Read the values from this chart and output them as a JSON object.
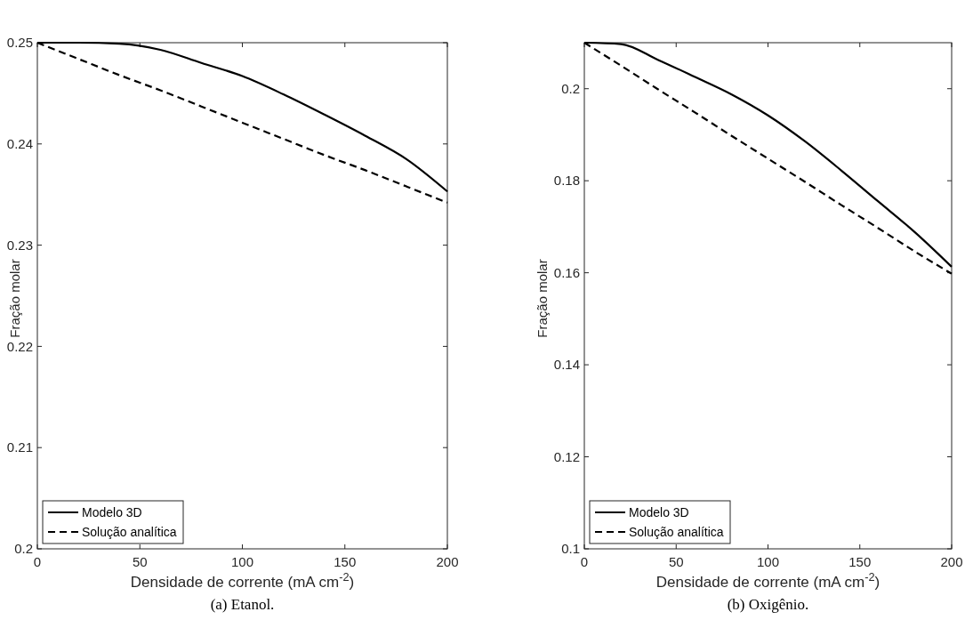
{
  "chart_data": [
    {
      "type": "line",
      "xlabel": "Densidade de corrente (mA cm$^{-2}$)",
      "ylabel": "Fração molar",
      "annotations": [
        "(a) Etanol."
      ],
      "x": [
        0,
        20,
        40,
        60,
        80,
        100,
        120,
        140,
        160,
        180,
        200
      ],
      "xlim": [
        0,
        200
      ],
      "xticks": [
        0,
        50,
        100,
        150,
        200
      ],
      "ylim": [
        0.2,
        0.25
      ],
      "yticks": [
        0.2,
        0.21,
        0.22,
        0.23,
        0.24,
        0.25
      ],
      "legend": "bottom left",
      "grid": false,
      "series": [
        {
          "name": "Modelo 3D",
          "color": "#000000",
          "line_style": "solid",
          "values": [
            0.25,
            0.25,
            0.2499,
            0.2493,
            0.248,
            0.2467,
            0.2449,
            0.2429,
            0.2408,
            0.2385,
            0.2353
          ]
        },
        {
          "name": "Solução analítica",
          "color": "#000000",
          "line_style": "dashed",
          "values": [
            0.25,
            0.2484,
            0.2468,
            0.2453,
            0.2437,
            0.2421,
            0.2405,
            0.2389,
            0.2374,
            0.2358,
            0.2342
          ]
        }
      ]
    },
    {
      "type": "line",
      "xlabel": "Densidade de corrente (mA cm$^{-2}$)",
      "ylabel": "Fração molar",
      "annotations": [
        "(b) Oxigênio."
      ],
      "x": [
        0,
        20,
        40,
        60,
        80,
        100,
        120,
        140,
        160,
        180,
        200
      ],
      "xlim": [
        0,
        200
      ],
      "xticks": [
        0,
        50,
        100,
        150,
        200
      ],
      "ylim": [
        0.1,
        0.21
      ],
      "yticks": [
        0.1,
        0.12,
        0.14,
        0.16,
        0.18,
        0.2
      ],
      "legend": "bottom left",
      "grid": false,
      "series": [
        {
          "name": "Modelo 3D",
          "color": "#000000",
          "line_style": "solid",
          "values": [
            0.21,
            0.2097,
            0.2063,
            0.2026,
            0.1988,
            0.1942,
            0.1886,
            0.1822,
            0.1755,
            0.1688,
            0.1613
          ]
        },
        {
          "name": "Solução analítica",
          "color": "#000000",
          "line_style": "dashed",
          "values": [
            0.21,
            0.205,
            0.1999,
            0.1949,
            0.1898,
            0.1848,
            0.1798,
            0.1747,
            0.1697,
            0.1646,
            0.1598
          ]
        }
      ]
    }
  ]
}
